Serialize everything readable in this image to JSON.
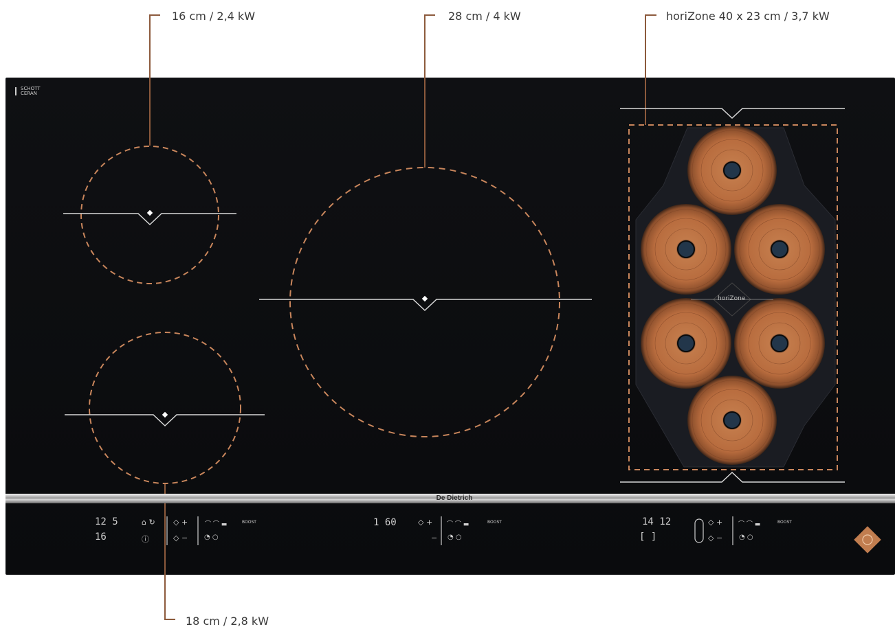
{
  "zones": {
    "front_left": {
      "label": "16 cm / 2,4 kW"
    },
    "center": {
      "label": "28 cm / 4 kW"
    },
    "right": {
      "label": "horiZone 40 x 23 cm / 3,7 kW",
      "panel_text": "horiZone"
    },
    "rear_left": {
      "label": "18 cm / 2,8 kW"
    }
  },
  "brand": {
    "name": "De Dietrich",
    "glass_line1": "SCHOTT",
    "glass_line2": "CERAN"
  },
  "controls": {
    "left_display_top": "12 5",
    "left_display_bottom": "16",
    "left_icons_a": "⌂ ↻",
    "left_icons_b": "ⓘ",
    "left_symbols_top": "◇ +",
    "left_symbols_bottom": "◇ −",
    "left_boost": "BOOST",
    "center_display": "1 60",
    "center_symbols_top": "◇ +",
    "center_symbols_bottom": "−",
    "center_boost": "BOOST",
    "right_display_top": "14 12",
    "right_display_bottom": "[ ]",
    "right_symbols_top": "◇ +",
    "right_symbols_bottom": "◇ −",
    "right_boost": "BOOST"
  },
  "colors": {
    "accent_copper": "#c17d4f",
    "dashed_outline": "#c9865c",
    "glass": "#0c0d10",
    "line_white": "#d8d8d8"
  }
}
